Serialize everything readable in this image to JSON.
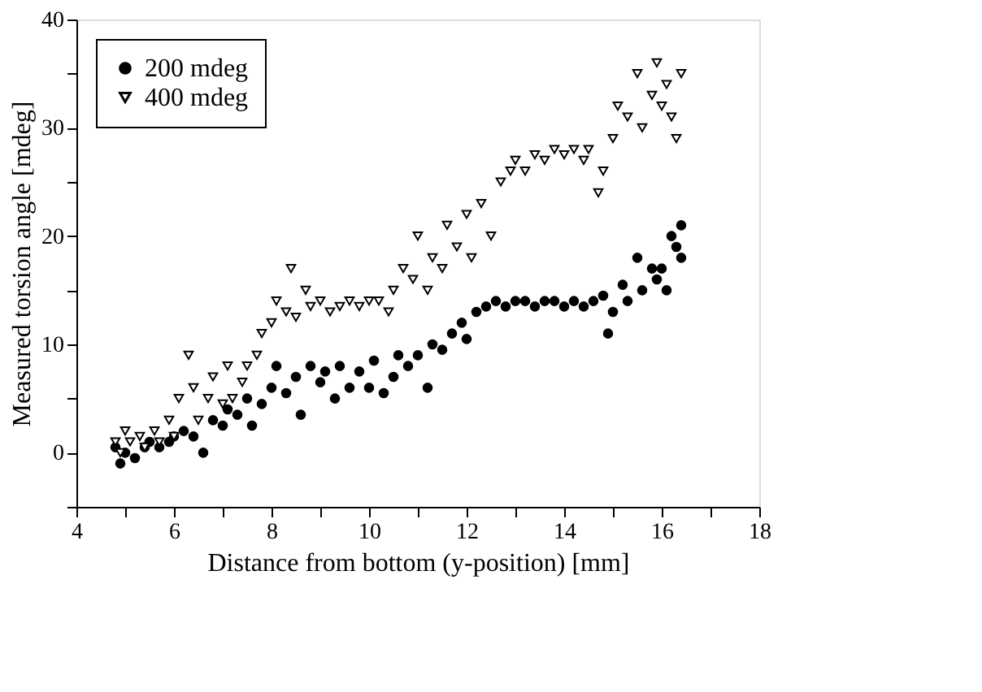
{
  "chart_data": {
    "type": "scatter",
    "xlabel": "Distance from bottom (y-position) [mm]",
    "ylabel": "Measured torsion angle [mdeg]",
    "xlim": [
      4,
      18
    ],
    "xticks": [
      4,
      {
        "value": 5,
        "label": null
      },
      6,
      {
        "value": 7,
        "label": null
      },
      8,
      {
        "value": 9,
        "label": null
      },
      10,
      {
        "value": 11,
        "label": null
      },
      12,
      {
        "value": 13,
        "label": null
      },
      14,
      {
        "value": 15,
        "label": null
      },
      16,
      {
        "value": 17,
        "label": null
      },
      18
    ],
    "ylim": [
      -5,
      40
    ],
    "yticks": [
      {
        "value": -5,
        "label": null
      },
      0,
      {
        "value": 5,
        "label": null
      },
      10,
      {
        "value": 15,
        "label": null
      },
      20,
      {
        "value": 25,
        "label": null
      },
      30,
      {
        "value": 35,
        "label": null
      },
      40
    ],
    "grid": false,
    "legend": "top left",
    "series": [
      {
        "name": "200 mdeg",
        "color": "#000000",
        "marker": "circle",
        "x": [
          4.8,
          4.9,
          5.0,
          5.2,
          5.4,
          5.5,
          5.7,
          5.9,
          6.0,
          6.2,
          6.4,
          6.6,
          6.8,
          7.0,
          7.1,
          7.3,
          7.5,
          7.6,
          7.8,
          8.0,
          8.1,
          8.3,
          8.5,
          8.6,
          8.8,
          9.0,
          9.1,
          9.3,
          9.4,
          9.6,
          9.8,
          10.0,
          10.1,
          10.3,
          10.5,
          10.6,
          10.8,
          11.0,
          11.2,
          11.3,
          11.5,
          11.7,
          11.9,
          12.0,
          12.2,
          12.4,
          12.6,
          12.8,
          13.0,
          13.2,
          13.4,
          13.6,
          13.8,
          14.0,
          14.2,
          14.4,
          14.6,
          14.8,
          14.9,
          15.0,
          15.2,
          15.3,
          15.5,
          15.6,
          15.8,
          15.9,
          16.0,
          16.1,
          16.2,
          16.3,
          16.4,
          16.4
        ],
        "values": [
          0.5,
          -1,
          0,
          -0.5,
          0.5,
          1,
          0.5,
          1,
          1.5,
          2,
          1.5,
          0,
          3,
          2.5,
          4,
          3.5,
          5,
          2.5,
          4.5,
          6,
          8,
          5.5,
          7,
          3.5,
          8,
          6.5,
          7.5,
          5,
          8,
          6,
          7.5,
          6,
          8.5,
          5.5,
          7,
          9,
          8,
          9,
          6,
          10,
          9.5,
          11,
          12,
          10.5,
          13,
          13.5,
          14,
          13.5,
          14,
          14,
          13.5,
          14,
          14,
          13.5,
          14,
          13.5,
          14,
          14.5,
          11,
          13,
          15.5,
          14,
          18,
          15,
          17,
          16,
          17,
          15,
          20,
          19,
          21,
          18
        ]
      },
      {
        "name": "400 mdeg",
        "color": "#000000",
        "marker": "triangle",
        "x": [
          4.8,
          4.9,
          5.0,
          5.1,
          5.3,
          5.4,
          5.6,
          5.7,
          5.9,
          6.0,
          6.1,
          6.3,
          6.4,
          6.5,
          6.7,
          6.8,
          7.0,
          7.1,
          7.2,
          7.4,
          7.5,
          7.7,
          7.8,
          8.0,
          8.1,
          8.3,
          8.4,
          8.5,
          8.7,
          8.8,
          9.0,
          9.2,
          9.4,
          9.6,
          9.8,
          10.0,
          10.2,
          10.4,
          10.5,
          10.7,
          10.9,
          11.0,
          11.2,
          11.3,
          11.5,
          11.6,
          11.8,
          12.0,
          12.1,
          12.3,
          12.5,
          12.7,
          12.9,
          13.0,
          13.2,
          13.4,
          13.6,
          13.8,
          14.0,
          14.2,
          14.4,
          14.5,
          14.7,
          14.8,
          15.0,
          15.1,
          15.3,
          15.5,
          15.6,
          15.8,
          15.9,
          16.0,
          16.1,
          16.2,
          16.3,
          16.4
        ],
        "values": [
          1,
          0,
          2,
          1,
          1.5,
          0.5,
          2,
          1,
          3,
          1.5,
          5,
          9,
          6,
          3,
          5,
          7,
          4.5,
          8,
          5,
          6.5,
          8,
          9,
          11,
          12,
          14,
          13,
          17,
          12.5,
          15,
          13.5,
          14,
          13,
          13.5,
          14,
          13.5,
          14,
          14,
          13,
          15,
          17,
          16,
          20,
          15,
          18,
          17,
          21,
          19,
          22,
          18,
          23,
          20,
          25,
          26,
          27,
          26,
          27.5,
          27,
          28,
          27.5,
          28,
          27,
          28,
          24,
          26,
          29,
          32,
          31,
          35,
          30,
          33,
          36,
          32,
          34,
          31,
          29,
          35
        ]
      }
    ]
  }
}
